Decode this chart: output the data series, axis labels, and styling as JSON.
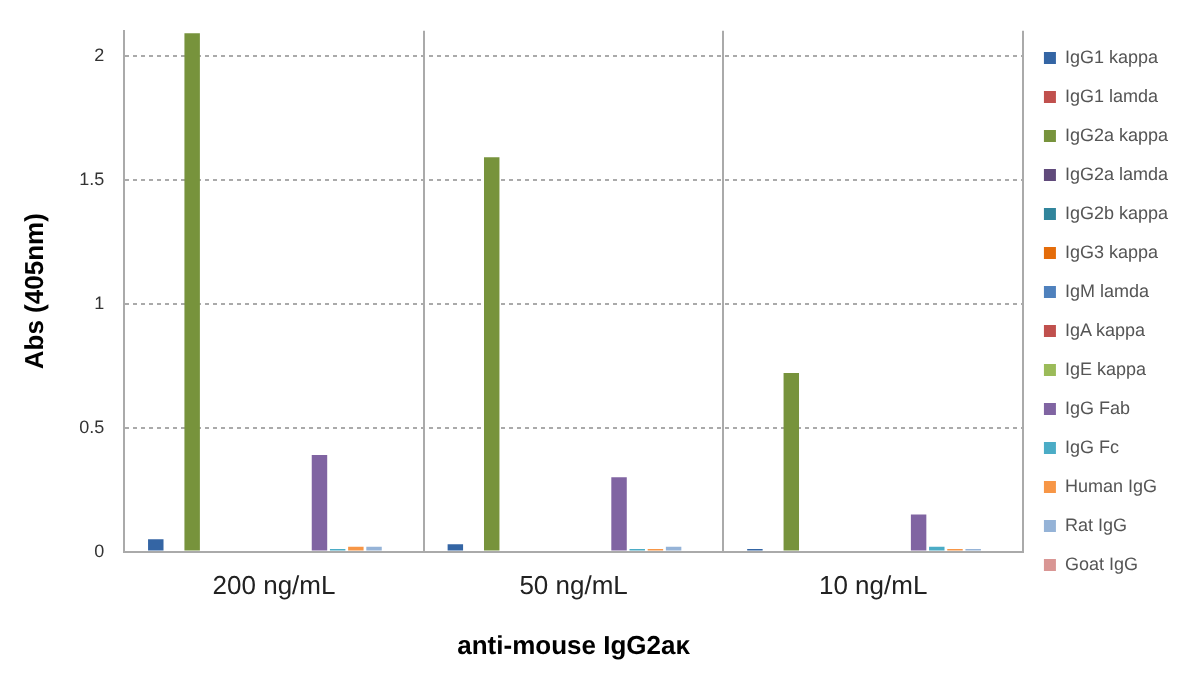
{
  "chart_data": {
    "type": "bar",
    "xlabel": "anti-mouse IgG2aκ",
    "ylabel": "Abs (405nm)",
    "categories": [
      "200 ng/mL",
      "50 ng/mL",
      "10 ng/mL"
    ],
    "ylim": [
      0,
      2.1
    ],
    "yticks": [
      0,
      0.5,
      1,
      1.5,
      2
    ],
    "grid": true,
    "legend": "right",
    "series": [
      {
        "name": "IgG1 kappa",
        "color": "#3465a4",
        "values": [
          0.05,
          0.03,
          0.01
        ]
      },
      {
        "name": "IgG1 lamda",
        "color": "#c0504d",
        "values": [
          0,
          0,
          0
        ]
      },
      {
        "name": "IgG2a kappa",
        "color": "#77933c",
        "values": [
          2.09,
          1.59,
          0.72
        ]
      },
      {
        "name": "IgG2a lamda",
        "color": "#604a7b",
        "values": [
          0,
          0,
          0
        ]
      },
      {
        "name": "IgG2b kappa",
        "color": "#31859c",
        "values": [
          0,
          0,
          0
        ]
      },
      {
        "name": "IgG3 kappa",
        "color": "#e46c0a",
        "values": [
          0,
          0,
          0
        ]
      },
      {
        "name": "IgM lamda",
        "color": "#4f81bd",
        "values": [
          0,
          0,
          0
        ]
      },
      {
        "name": "IgA kappa",
        "color": "#c0504d",
        "values": [
          0,
          0,
          0
        ]
      },
      {
        "name": "IgE kappa",
        "color": "#9bbb59",
        "values": [
          0,
          0,
          0
        ]
      },
      {
        "name": "IgG Fab",
        "color": "#8064a2",
        "values": [
          0.39,
          0.3,
          0.15
        ]
      },
      {
        "name": "IgG Fc",
        "color": "#4bacc6",
        "values": [
          0.01,
          0.01,
          0.02
        ]
      },
      {
        "name": "Human IgG",
        "color": "#f79646",
        "values": [
          0.02,
          0.01,
          0.01
        ]
      },
      {
        "name": "Rat IgG",
        "color": "#95b3d7",
        "values": [
          0.02,
          0.02,
          0.01
        ]
      },
      {
        "name": "Goat IgG",
        "color": "#d99694",
        "values": [
          0,
          0,
          0
        ]
      }
    ]
  }
}
